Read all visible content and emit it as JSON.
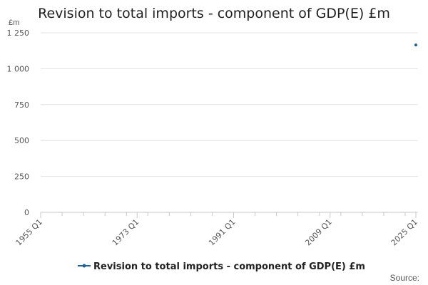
{
  "chart_data": {
    "type": "line",
    "title": "Revision to total imports - component of GDP(E) £m",
    "ylabel": "£m",
    "xlabel": "",
    "x_tick_labels": [
      "1955 Q1",
      "1973 Q1",
      "1991 Q1",
      "2009 Q1",
      "2025 Q1"
    ],
    "y_tick_labels": [
      "0",
      "250",
      "500",
      "750",
      "1 000",
      "1 250"
    ],
    "ylim": [
      0,
      1250
    ],
    "xlim": [
      "1955 Q1",
      "2025 Q1"
    ],
    "grid": "horizontal",
    "legend_position": "bottom",
    "series": [
      {
        "name": "Revision to total imports - component of GDP(E) £m",
        "color": "#206095",
        "points": [
          {
            "x": "2025 Q1",
            "y": 1165
          }
        ]
      }
    ],
    "source_label": "Source:"
  }
}
